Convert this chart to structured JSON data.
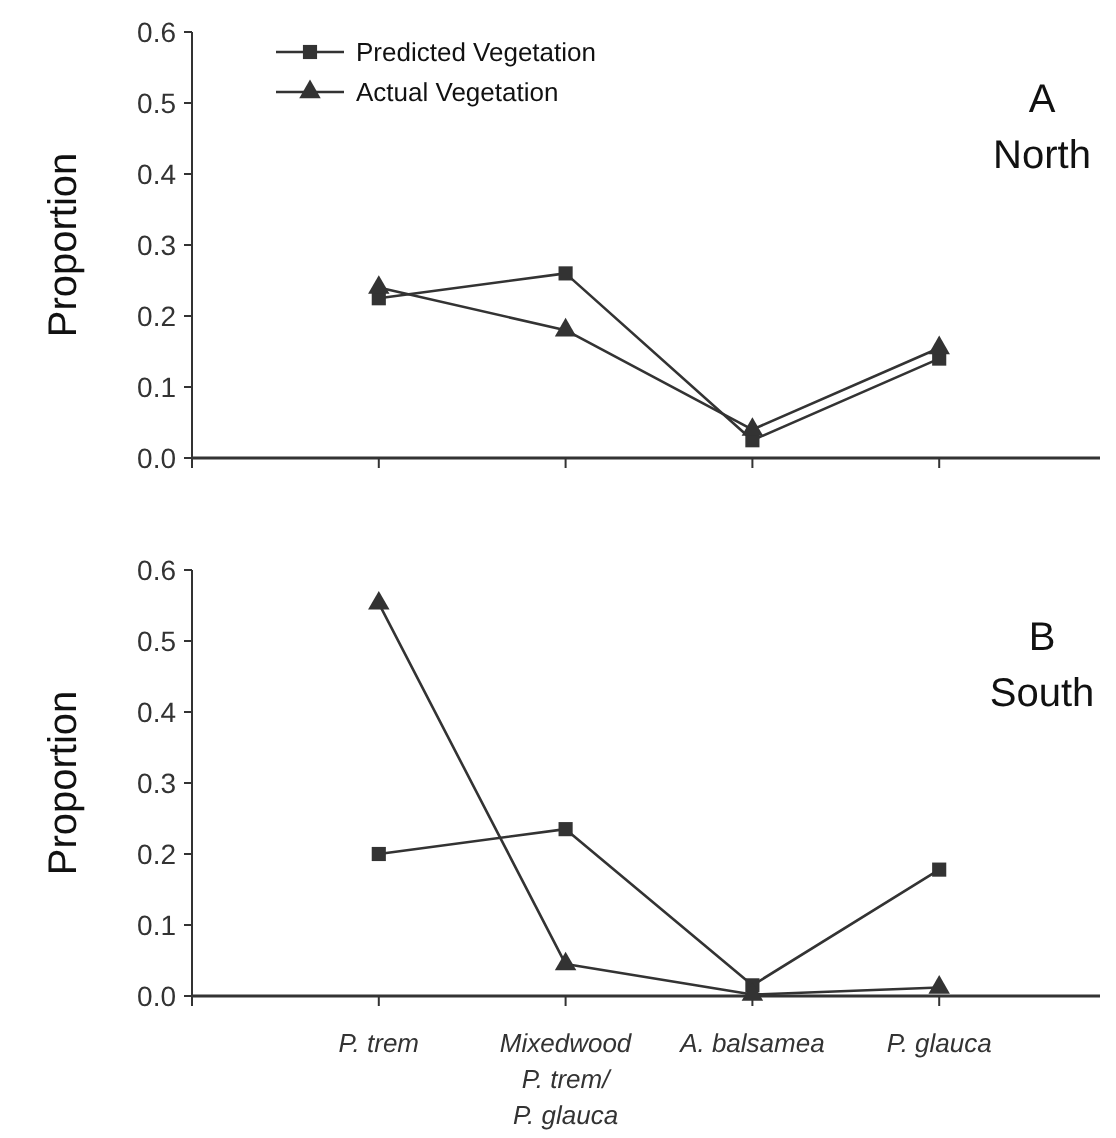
{
  "chart_data": [
    {
      "type": "line",
      "title": "A",
      "subtitle": "North",
      "ylabel": "Proportion",
      "categories": [
        null,
        null,
        null,
        null
      ],
      "legend": "top left",
      "grid": false,
      "ylim": [
        0,
        0.6
      ],
      "yticks": [
        {
          "value": 0,
          "label": "0.0"
        },
        0.1,
        0.2,
        0.3,
        0.4,
        0.5,
        0.6
      ],
      "series": [
        {
          "name": "Predicted Vegetation",
          "color": "#333333",
          "marker": "square",
          "values": [
            0.225,
            0.26,
            0.025,
            0.14
          ]
        },
        {
          "name": "Actual Vegetation",
          "color": "#333333",
          "marker": "triangle",
          "values": [
            0.24,
            0.18,
            0.04,
            0.155
          ]
        }
      ]
    },
    {
      "type": "line",
      "title": "B",
      "subtitle": "South",
      "ylabel": "Proportion",
      "categories": [
        "P. trem",
        "Mixedwood\nP. trem/\nP. glauca",
        "A. balsamea",
        "P. glauca"
      ],
      "legend": false,
      "grid": false,
      "ylim": [
        0,
        0.6
      ],
      "yticks": [
        {
          "value": 0,
          "label": "0.0"
        },
        0.1,
        0.2,
        0.3,
        0.4,
        0.5,
        0.6
      ],
      "series": [
        {
          "color": "#333333",
          "marker": "square",
          "values": [
            0.2,
            0.235,
            0.015,
            0.178
          ]
        },
        {
          "color": "#333333",
          "marker": "triangle",
          "values": [
            0.553,
            0.045,
            0.002,
            0.012
          ]
        }
      ]
    }
  ]
}
